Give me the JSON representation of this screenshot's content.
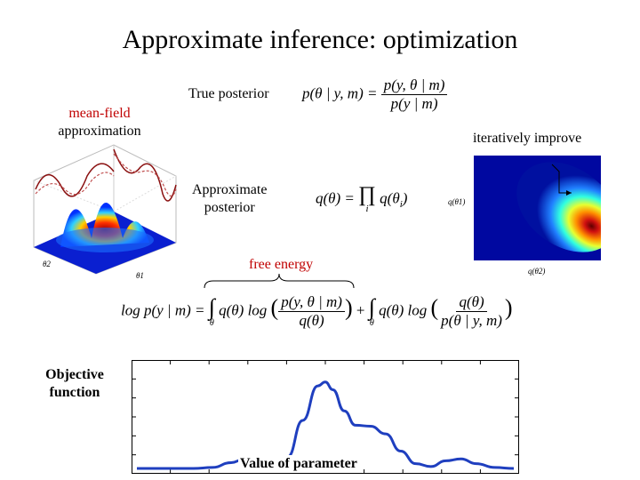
{
  "title": "Approximate inference: optimization",
  "labels": {
    "mean_field_line1": "mean-field",
    "mean_field_line2": "approximation",
    "true_posterior": "True posterior",
    "iteratively_improve": "iteratively improve",
    "approx_line1": "Approximate",
    "approx_line2": "posterior",
    "free_energy": "free energy",
    "objective_line1": "Objective",
    "objective_line2": "function",
    "value_of_parameter": "Value of parameter"
  },
  "equations": {
    "true_posterior": {
      "lhs": "p(θ | y, m) =",
      "num": "p(y, θ | m)",
      "den": "p(y | m)"
    },
    "approx_posterior": {
      "lhs": "q(θ) =",
      "op": "∏",
      "sub": "i",
      "term": "q(θ",
      "term_sub": "i",
      "term_end": ")"
    },
    "free_energy_eq": {
      "lhs": "log p(y | m) =",
      "int1": "∫",
      "int1_sub": "θ",
      "mid1": "q(θ) log",
      "num1": "p(y, θ | m)",
      "den1": "q(θ)",
      "plus": "+",
      "int2": "∫",
      "int2_sub": "θ",
      "mid2": "q(θ) log",
      "num2": "q(θ)",
      "den2": "p(θ | y, m)"
    }
  },
  "heatmap": {
    "y_label": "q(θ1)",
    "x_label": "q(θ2)"
  },
  "surface": {
    "axis1": "θ2",
    "axis2": "θ1"
  },
  "chart_data": {
    "type": "line",
    "title": "",
    "xlabel": "Value of parameter",
    "ylabel": "Objective function",
    "x": [
      0,
      0.05,
      0.1,
      0.15,
      0.2,
      0.25,
      0.28,
      0.32,
      0.36,
      0.4,
      0.44,
      0.48,
      0.5,
      0.52,
      0.55,
      0.58,
      0.62,
      0.66,
      0.7,
      0.74,
      0.78,
      0.82,
      0.86,
      0.9,
      0.95,
      1.0
    ],
    "y": [
      0,
      0,
      0,
      0,
      0.01,
      0.06,
      0.09,
      0.06,
      0.03,
      0.12,
      0.5,
      0.86,
      0.9,
      0.82,
      0.6,
      0.45,
      0.44,
      0.36,
      0.18,
      0.05,
      0.02,
      0.08,
      0.1,
      0.05,
      0.01,
      0
    ],
    "xlim": [
      0,
      1
    ],
    "ylim": [
      0,
      1
    ],
    "grid": false,
    "line_color": "#1f3fbf"
  }
}
